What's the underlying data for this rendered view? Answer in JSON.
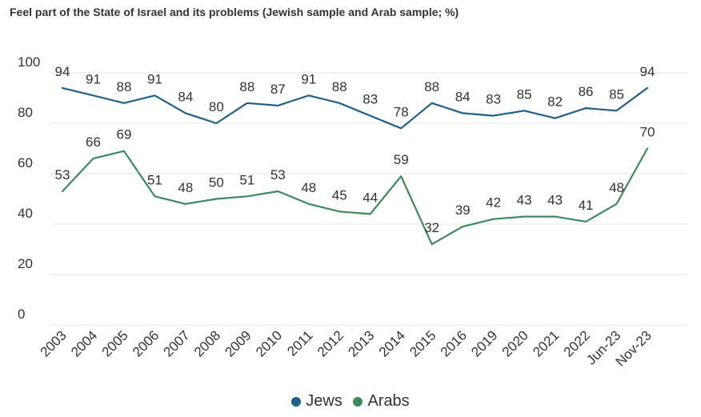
{
  "chart_data": {
    "type": "line",
    "title": "Feel part of the State of Israel and its problems (Jewish sample and Arab sample; %)",
    "categories": [
      "2003",
      "2004",
      "2005",
      "2006",
      "2007",
      "2008",
      "2009",
      "2010",
      "2011",
      "2012",
      "2013",
      "2014",
      "2015",
      "2016",
      "2019",
      "2020",
      "2021",
      "2022",
      "Jun-23",
      "Nov-23"
    ],
    "series": [
      {
        "name": "Jews",
        "color": "#1f5f88",
        "values": [
          94,
          91,
          88,
          91,
          84,
          80,
          88,
          87,
          91,
          88,
          83,
          78,
          88,
          84,
          83,
          85,
          82,
          86,
          85,
          94
        ]
      },
      {
        "name": "Arabs",
        "color": "#3a8a5c",
        "values": [
          53,
          66,
          69,
          51,
          48,
          50,
          51,
          53,
          48,
          45,
          44,
          59,
          32,
          39,
          42,
          43,
          43,
          41,
          48,
          70
        ]
      }
    ],
    "y_ticks": [
      0,
      20,
      40,
      60,
      80,
      100
    ],
    "ylim": [
      0,
      100
    ],
    "grid": true,
    "legend_position": "bottom"
  }
}
